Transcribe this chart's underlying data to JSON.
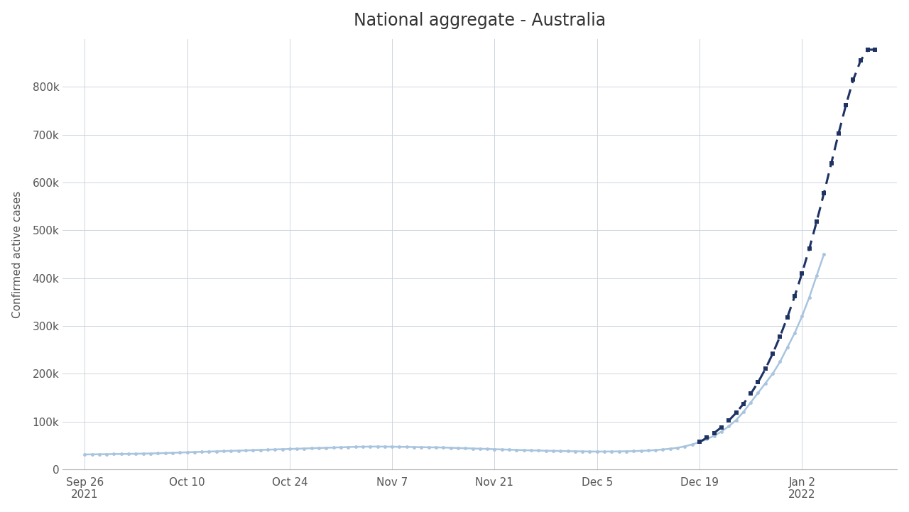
{
  "title": "National aggregate - Australia",
  "ylabel": "Confirmed active cases",
  "background_color": "#ffffff",
  "plot_bg_color": "#ffffff",
  "grid_color": "#cdd5e0",
  "title_fontsize": 17,
  "axis_label_fontsize": 11,
  "tick_fontsize": 11,
  "actual_color": "#a8c4de",
  "projection_color": "#1e3264",
  "actual_linewidth": 1.8,
  "projection_linewidth": 2.2,
  "actual_markersize": 3.5,
  "projection_markersize": 5,
  "x_tick_labels": [
    "Sep 26\n2021",
    "Oct 10",
    "Oct 24",
    "Nov 7",
    "Nov 21",
    "Dec 5",
    "Dec 19",
    "Jan 2\n2022"
  ],
  "x_tick_days_from_start": [
    0,
    14,
    28,
    42,
    56,
    70,
    84,
    98
  ],
  "ylim": [
    0,
    900000
  ],
  "yticks": [
    0,
    100000,
    200000,
    300000,
    400000,
    500000,
    600000,
    700000,
    800000
  ],
  "ytick_labels": [
    "0",
    "100k",
    "200k",
    "300k",
    "400k",
    "500k",
    "600k",
    "700k",
    "800k"
  ],
  "actual_data": [
    [
      0,
      31000
    ],
    [
      1,
      31200
    ],
    [
      2,
      31400
    ],
    [
      3,
      31600
    ],
    [
      4,
      31800
    ],
    [
      5,
      32000
    ],
    [
      6,
      32200
    ],
    [
      7,
      32500
    ],
    [
      8,
      32800
    ],
    [
      9,
      33100
    ],
    [
      10,
      33500
    ],
    [
      11,
      34000
    ],
    [
      12,
      34500
    ],
    [
      13,
      35000
    ],
    [
      14,
      35500
    ],
    [
      15,
      36000
    ],
    [
      16,
      36500
    ],
    [
      17,
      37000
    ],
    [
      18,
      37500
    ],
    [
      19,
      38000
    ],
    [
      20,
      38500
    ],
    [
      21,
      39000
    ],
    [
      22,
      39500
    ],
    [
      23,
      40000
    ],
    [
      24,
      40500
    ],
    [
      25,
      41000
    ],
    [
      26,
      41500
    ],
    [
      27,
      42000
    ],
    [
      28,
      42500
    ],
    [
      29,
      43000
    ],
    [
      30,
      43500
    ],
    [
      31,
      44000
    ],
    [
      32,
      44500
    ],
    [
      33,
      45000
    ],
    [
      34,
      45500
    ],
    [
      35,
      46000
    ],
    [
      36,
      46500
    ],
    [
      37,
      47000
    ],
    [
      38,
      47200
    ],
    [
      39,
      47400
    ],
    [
      40,
      47500
    ],
    [
      41,
      47400
    ],
    [
      42,
      47200
    ],
    [
      43,
      47000
    ],
    [
      44,
      46800
    ],
    [
      45,
      46500
    ],
    [
      46,
      46200
    ],
    [
      47,
      46000
    ],
    [
      48,
      45800
    ],
    [
      49,
      45500
    ],
    [
      50,
      45000
    ],
    [
      51,
      44500
    ],
    [
      52,
      44000
    ],
    [
      53,
      43500
    ],
    [
      54,
      43000
    ],
    [
      55,
      42500
    ],
    [
      56,
      42000
    ],
    [
      57,
      41500
    ],
    [
      58,
      41000
    ],
    [
      59,
      40500
    ],
    [
      60,
      40000
    ],
    [
      61,
      39600
    ],
    [
      62,
      39200
    ],
    [
      63,
      38800
    ],
    [
      64,
      38500
    ],
    [
      65,
      38200
    ],
    [
      66,
      37900
    ],
    [
      67,
      37600
    ],
    [
      68,
      37400
    ],
    [
      69,
      37200
    ],
    [
      70,
      37000
    ],
    [
      71,
      37100
    ],
    [
      72,
      37200
    ],
    [
      73,
      37400
    ],
    [
      74,
      37600
    ],
    [
      75,
      38000
    ],
    [
      76,
      38500
    ],
    [
      77,
      39200
    ],
    [
      78,
      40200
    ],
    [
      79,
      41500
    ],
    [
      80,
      43000
    ],
    [
      81,
      45000
    ],
    [
      82,
      48000
    ],
    [
      83,
      52000
    ],
    [
      84,
      57000
    ],
    [
      85,
      63000
    ],
    [
      86,
      70000
    ],
    [
      87,
      79000
    ],
    [
      88,
      90000
    ],
    [
      89,
      103000
    ],
    [
      90,
      120000
    ],
    [
      91,
      140000
    ],
    [
      92,
      160000
    ],
    [
      93,
      180000
    ],
    [
      94,
      200000
    ],
    [
      95,
      225000
    ],
    [
      96,
      255000
    ],
    [
      97,
      285000
    ],
    [
      98,
      320000
    ],
    [
      99,
      360000
    ],
    [
      100,
      405000
    ],
    [
      101,
      450000
    ]
  ],
  "projection_data": [
    [
      84,
      57000
    ],
    [
      85,
      66000
    ],
    [
      86,
      76000
    ],
    [
      87,
      88000
    ],
    [
      88,
      102000
    ],
    [
      89,
      118000
    ],
    [
      90,
      137000
    ],
    [
      91,
      158000
    ],
    [
      92,
      182000
    ],
    [
      93,
      210000
    ],
    [
      94,
      242000
    ],
    [
      95,
      278000
    ],
    [
      96,
      318000
    ],
    [
      97,
      362000
    ],
    [
      98,
      410000
    ],
    [
      99,
      462000
    ],
    [
      100,
      518000
    ],
    [
      101,
      578000
    ],
    [
      102,
      640000
    ],
    [
      103,
      703000
    ],
    [
      104,
      762000
    ],
    [
      105,
      815000
    ],
    [
      106,
      855000
    ],
    [
      107,
      878000
    ],
    [
      108,
      878000
    ]
  ]
}
